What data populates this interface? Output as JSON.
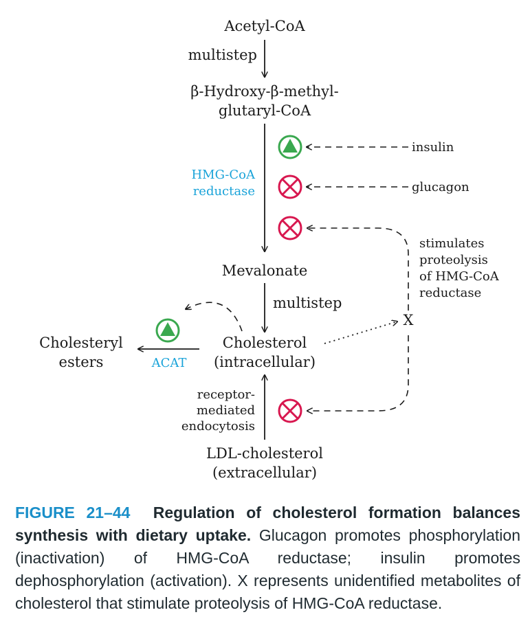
{
  "diagram": {
    "nodes": {
      "acetyl_coa": "Acetyl-CoA",
      "hmg_coa_line1": "β-Hydroxy-β-methyl-",
      "hmg_coa_line2": "glutaryl-CoA",
      "mevalonate": "Mevalonate",
      "cholesterol_line1": "Cholesterol",
      "cholesterol_line2": "(intracellular)",
      "cholesteryl_line1": "Cholesteryl",
      "cholesteryl_line2": "esters",
      "ldl_line1": "LDL-cholesterol",
      "ldl_line2": "(extracellular)",
      "x": "X"
    },
    "labels": {
      "multistep_1": "multistep",
      "multistep_2": "multistep",
      "hmg_reductase_line1": "HMG-CoA",
      "hmg_reductase_line2": "reductase",
      "acat": "ACAT",
      "insulin": "insulin",
      "glucagon": "glucagon",
      "stimulates_line1": "stimulates",
      "stimulates_line2": "proteolysis",
      "stimulates_line3": "of HMG-CoA",
      "stimulates_line4": "reductase",
      "receptor_line1": "receptor-",
      "receptor_line2": "mediated",
      "receptor_line3": "endocytosis"
    },
    "colors": {
      "activate": "#3aa84f",
      "inhibit": "#d8174f",
      "enzyme": "#1aa3d9"
    }
  },
  "caption": {
    "label": "FIGURE 21–44",
    "title": "Regulation of cholesterol formation balances synthesis with dietary uptake.",
    "body": "Glucagon promotes phosphorylation (inactivation) of HMG-CoA reductase; insulin promotes dephosphorylation (activation). X represents unidentified metabolites of cholesterol that stimulate proteolysis of HMG-CoA reductase."
  }
}
